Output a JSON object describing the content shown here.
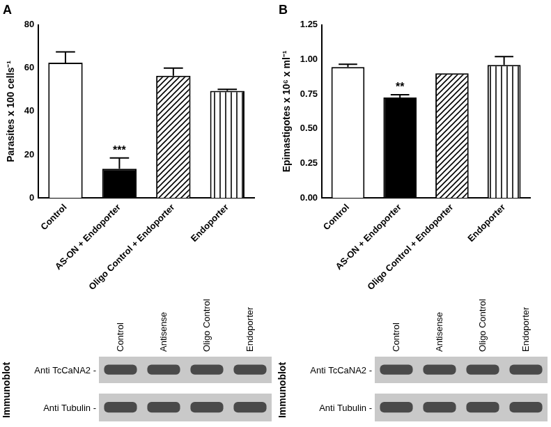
{
  "chart_data": [
    {
      "type": "bar",
      "title": "A",
      "y_label": "Parasites x 100 cells⁻¹",
      "categories": [
        "Control",
        "AS-ON + Endoporter",
        "Oligo Control + Endoporter",
        "Endoporter"
      ],
      "values": [
        62.5,
        13.5,
        56.5,
        49.5
      ],
      "errors": [
        5,
        5,
        3.5,
        0.7
      ],
      "colors": [
        "#ffffff",
        "#000000",
        "#ffffff",
        "#ffffff"
      ],
      "ylim": [
        0,
        80
      ],
      "yticks": [
        0,
        20,
        40,
        60,
        80
      ],
      "grid": false,
      "annotations": [
        {
          "category": "AS-ON + Endoporter",
          "text": "***"
        }
      ]
    },
    {
      "type": "bar",
      "title": "B",
      "y_label": "Epimastigotes x 10⁶ x ml⁻¹",
      "categories": [
        "Control",
        "AS-ON + Endoporter",
        "Oligo Control + Endoporter",
        "Endoporter"
      ],
      "values": [
        0.945,
        0.725,
        0.9,
        0.96
      ],
      "errors": [
        0.02,
        0.02,
        0,
        0.06
      ],
      "colors": [
        "#ffffff",
        "#000000",
        "#ffffff",
        "#ffffff"
      ],
      "ylim": [
        0,
        1.25
      ],
      "yticks": [
        {
          "value": 0,
          "label": "0.00"
        },
        0.25,
        {
          "value": 0.5,
          "label": "0.50"
        },
        0.75,
        {
          "value": 1,
          "label": "1.00"
        },
        1.25
      ],
      "grid": false,
      "annotations": [
        {
          "category": "AS-ON + Endoporter",
          "text": "**"
        }
      ]
    }
  ],
  "immunoblots": [
    {
      "side_label": "Immunoblot",
      "lanes": [
        "Control",
        "Antisense",
        "Oligo Control",
        "Endoporter"
      ],
      "rows": [
        "Anti TcCaNA2 -",
        "Anti Tubulin -"
      ]
    },
    {
      "side_label": "Immunoblot",
      "lanes": [
        "Control",
        "Antisense",
        "Oligo Control",
        "Endoporter"
      ],
      "rows": [
        "Anti TcCaNA2 -",
        "Anti Tubulin -"
      ]
    }
  ]
}
